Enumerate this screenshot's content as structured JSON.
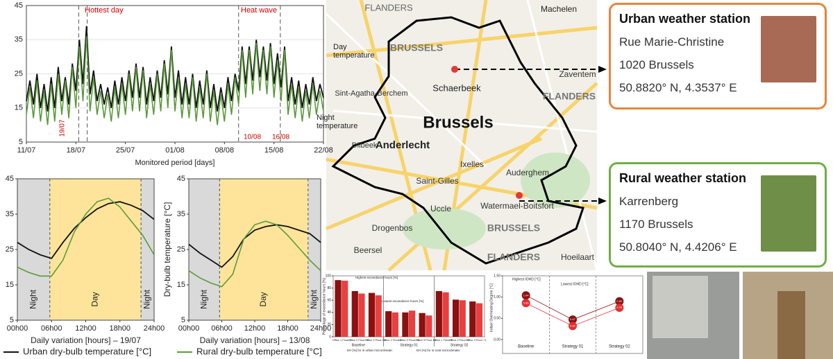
{
  "chart_data": [
    {
      "type": "line",
      "grid": true,
      "x": [
        0,
        0.5,
        1,
        1.5,
        2,
        2.5,
        3,
        3.5,
        4,
        4.5,
        5,
        5.5,
        6,
        6.5,
        7,
        7.5,
        8,
        8.5,
        9,
        9.5,
        10,
        10.5,
        11,
        11.5,
        12,
        12.5,
        13,
        13.5,
        14,
        14.5,
        15,
        15.5,
        16,
        16.5,
        17,
        17.5,
        18,
        18.5,
        19,
        19.5,
        20,
        20.5,
        21,
        21.5,
        22,
        22.5,
        23,
        23.5,
        24,
        24.5,
        25,
        25.5,
        26,
        26.5,
        27,
        27.5,
        28,
        28.5,
        29,
        29.5,
        30,
        30.5,
        31,
        31.5,
        32,
        32.5,
        33,
        33.5,
        34,
        34.5,
        35,
        35.5,
        36,
        36.5,
        37,
        37.5,
        38,
        38.5,
        39,
        39.5,
        40,
        40.5,
        41,
        41.5,
        42
      ],
      "series": [
        {
          "color": "#111111",
          "values": [
            17,
            23,
            16,
            25,
            15,
            22,
            14,
            24,
            15,
            27,
            17,
            24,
            16,
            28,
            20,
            35,
            22,
            39,
            19,
            26,
            17,
            22,
            16,
            21,
            15,
            23,
            16,
            24,
            17,
            26,
            18,
            28,
            18,
            27,
            16,
            24,
            17,
            26,
            18,
            29,
            19,
            33,
            18,
            26,
            16,
            24,
            16,
            25,
            15,
            23,
            16,
            26,
            15,
            22,
            14,
            21,
            15,
            24,
            17,
            25,
            20,
            33,
            22,
            33,
            23,
            35,
            24,
            33,
            23,
            34,
            22,
            31,
            21,
            33,
            17,
            24,
            16,
            23,
            15,
            22,
            16,
            24,
            17,
            22,
            18
          ]
        },
        {
          "color": "#5a9a3a",
          "values": [
            13,
            21,
            12,
            23,
            11,
            20,
            10,
            22,
            11,
            25,
            13,
            23,
            12,
            27,
            15,
            33,
            17,
            36,
            14,
            24,
            13,
            20,
            12,
            19,
            11,
            21,
            12,
            22,
            13,
            25,
            14,
            27,
            14,
            26,
            12,
            22,
            13,
            25,
            14,
            28,
            15,
            32,
            14,
            24,
            12,
            22,
            12,
            24,
            11,
            21,
            12,
            25,
            11,
            20,
            10,
            19,
            11,
            22,
            13,
            24,
            16,
            32,
            18,
            32,
            19,
            34,
            20,
            32,
            19,
            33,
            18,
            29,
            17,
            32,
            13,
            22,
            12,
            21,
            11,
            20,
            12,
            22,
            13,
            20,
            14
          ]
        }
      ],
      "xlim": [
        0,
        42
      ],
      "xticks": [
        {
          "value": 0,
          "label": "11/07"
        },
        {
          "value": 7,
          "label": "18/07"
        },
        {
          "value": 14,
          "label": "25/07"
        },
        {
          "value": 21,
          "label": "01/08"
        },
        {
          "value": 28,
          "label": "08/08"
        },
        {
          "value": 35,
          "label": "15/08"
        },
        {
          "value": 42,
          "label": "22/08"
        }
      ],
      "ylim": [
        5,
        45
      ],
      "yticks": [
        5,
        15,
        25,
        35,
        45
      ],
      "x_label": "Monitored period [days]",
      "vlines": [
        7.4,
        8.6,
        30,
        35.9
      ],
      "annotations": [
        "Hottest day",
        "Heat wave",
        "19/07",
        "10/08",
        "16/08",
        "Day temperature",
        "Night temperature"
      ]
    },
    {
      "type": "line",
      "x": [
        0,
        2,
        4,
        6,
        8,
        10,
        12,
        14,
        16,
        18,
        20,
        22,
        24
      ],
      "series": [
        {
          "name": "Urban dry-bulb temperature [°C]",
          "color": "#111111",
          "values": [
            27,
            25,
            23.5,
            22.5,
            27,
            31,
            34,
            36.5,
            38,
            38.5,
            37.5,
            36,
            33.5
          ]
        },
        {
          "color": "#5a9a3a",
          "values": [
            20,
            18.5,
            17.5,
            17.5,
            22,
            30,
            35,
            38.5,
            39.5,
            37,
            33,
            29,
            23.5
          ]
        }
      ],
      "regions": [
        {
          "label": "Night",
          "start": 0,
          "end": 5.7,
          "color": "#d9d9d9"
        },
        {
          "label": "Day",
          "start": 5.7,
          "end": 21.7,
          "color": "#fde49a"
        },
        {
          "label": "Night",
          "start": 21.7,
          "end": 24,
          "color": "#d9d9d9"
        }
      ],
      "xlim": [
        0,
        24
      ],
      "xticks": [
        {
          "value": 0,
          "label": "00h00"
        },
        {
          "value": 6,
          "label": "06h00"
        },
        {
          "value": 12,
          "label": "12h00"
        },
        {
          "value": 18,
          "label": "18h00"
        },
        {
          "value": 24,
          "label": "24h00"
        }
      ],
      "ylim": [
        5,
        45
      ],
      "yticks": [
        5,
        15,
        25,
        35,
        45
      ],
      "x_label": "Daily variation [hours] – 19/07"
    },
    {
      "type": "line",
      "x": [
        0,
        2,
        4,
        6,
        8,
        10,
        12,
        14,
        16,
        18,
        20,
        22,
        24
      ],
      "series": [
        {
          "color": "#111111",
          "values": [
            26.5,
            24,
            22,
            20,
            23,
            28,
            30.5,
            31.5,
            32,
            31.5,
            30.5,
            29.5,
            27
          ]
        },
        {
          "name": "Rural dry-bulb temperature [°C]",
          "color": "#5a9a3a",
          "values": [
            19,
            17,
            15.5,
            14.5,
            18,
            28,
            32,
            33,
            32,
            29,
            25.5,
            22,
            19
          ]
        }
      ],
      "regions": [
        {
          "label": "Night",
          "start": 0,
          "end": 5.6,
          "color": "#d9d9d9"
        },
        {
          "label": "Day",
          "start": 5.6,
          "end": 21.7,
          "color": "#fde49a"
        },
        {
          "label": "Night",
          "start": 21.7,
          "end": 24,
          "color": "#d9d9d9"
        }
      ],
      "xlim": [
        0,
        24
      ],
      "xticks": [
        {
          "value": 0,
          "label": "00h00"
        },
        {
          "value": 6,
          "label": "06h00"
        },
        {
          "value": 12,
          "label": "12h00"
        },
        {
          "value": 18,
          "label": "18h00"
        },
        {
          "value": 24,
          "label": "24h00"
        }
      ],
      "ylim": [
        5,
        45
      ],
      "yticks": [
        5,
        15,
        25,
        35,
        45
      ],
      "x_label": "Daily variation [hours] – 13/08",
      "y_label": "Dry-bulb temperature [°C]"
    },
    {
      "type": "bar",
      "categories": [
        "Office 1 Floor 0",
        "Office 2 Floor +2",
        "Office 3 Floor +1",
        "Office 1 Floor 0",
        "Office 2 Floor +2",
        "Office 3 Floor +1",
        "Office 1 Floor 0",
        "Office 2 Floor +2",
        "Office 3 Floor +1"
      ],
      "groups": [
        "Baseline",
        "Strategy 01",
        "Strategy 02"
      ],
      "series": [
        {
          "color": "#8b1010",
          "values": [
            93,
            75,
            72,
            42,
            40,
            39,
            75,
            61,
            58
          ]
        },
        {
          "color": "#e84040",
          "values": [
            92,
            71,
            68,
            40,
            43,
            35,
            73,
            60,
            55
          ]
        }
      ],
      "ylim": [
        0,
        100
      ],
      "yticks": [
        0,
        20,
        40,
        60,
        80,
        100
      ],
      "y_label": "Percentage of exceedance hours [%]",
      "annotations": [
        "Highest exceedance hours [%]",
        "Lowest exceedance hours [%]"
      ],
      "legend_texts": [
        "EH [%] for in urban microclimate:",
        "EH [%] for in rural microclimate:"
      ]
    },
    {
      "type": "bubble",
      "categories": [
        "Baseline",
        "Strategy 01",
        "Strategy 02"
      ],
      "series": [
        {
          "color": "#8b1010",
          "values": [
            1.04,
            0.47,
            0.9
          ],
          "value_labels": [
            "1.04",
            "0.47",
            "0.90"
          ]
        },
        {
          "color": "#e03030",
          "values": [
            0.86,
            0.32,
            0.75
          ],
          "value_labels": [
            "0.86",
            "0.32",
            "0.75"
          ]
        }
      ],
      "ylim": [
        0,
        1.5
      ],
      "yticks": [
        {
          "value": 0,
          "label": "0.00"
        },
        {
          "value": 0.5,
          "label": "0.50"
        },
        {
          "value": 1,
          "label": "1.00"
        },
        {
          "value": 1.5,
          "label": "1.50"
        }
      ],
      "y_label": "Indoor Overheating Degree [°C]",
      "annotations": [
        "Highest IOHD [°C]",
        "Lowest IOHD [°C]"
      ]
    }
  ],
  "map": {
    "labels": [
      "FLANDERS",
      "Machelen",
      "BRUSSELS",
      "Schaerbeek",
      "Brussels",
      "Anderlecht",
      "Ixelles",
      "Saint-Gilles",
      "Uccle",
      "Auderghem",
      "Watermael-Boitsfort",
      "Drogenbos",
      "Dilbeek",
      "Sint-Agatha-Berchem",
      "Zaventem",
      "Beersel",
      "Hoeilaart",
      "BRUSSELS",
      "FLANDERS",
      "FLANDERS"
    ]
  },
  "stations": [
    {
      "title": "Urban weather station",
      "street": "Rue Marie-Christine",
      "city": "1020 Brussels",
      "coords": "50.8820° N, 4.3537° E"
    },
    {
      "title": "Rural weather station",
      "street": "Karrenberg",
      "city": "1170 Brussels",
      "coords": "50.8040° N, 4.4206° E"
    }
  ]
}
